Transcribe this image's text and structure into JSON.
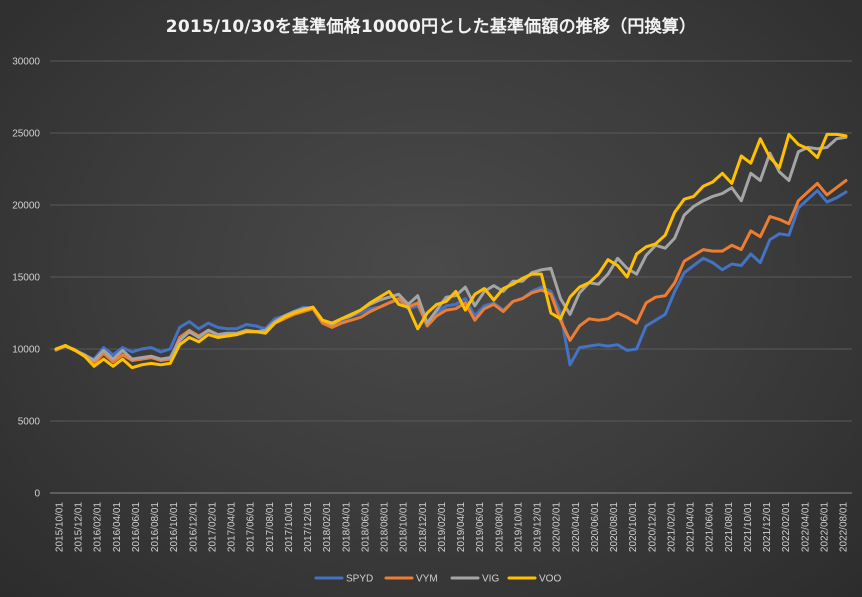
{
  "chart_data": {
    "type": "line",
    "title": "2015/10/30を基準価格10000円とした基準価額の推移（円換算）",
    "xlabel": "",
    "ylabel": "",
    "ylim": [
      0,
      30000
    ],
    "yticks": [
      0,
      5000,
      10000,
      15000,
      20000,
      25000,
      30000
    ],
    "ytick_labels": [
      "0",
      "5000",
      "10000",
      "15000",
      "20000",
      "25000",
      "30000"
    ],
    "x_tick_labels": [
      "2015/10/01",
      "2015/12/01",
      "2016/02/01",
      "2016/04/01",
      "2016/06/01",
      "2016/08/01",
      "2016/10/01",
      "2016/12/01",
      "2017/02/01",
      "2017/04/01",
      "2017/06/01",
      "2017/08/01",
      "2017/10/01",
      "2017/12/01",
      "2018/02/01",
      "2018/04/01",
      "2018/06/01",
      "2018/08/01",
      "2018/10/01",
      "2018/12/01",
      "2019/02/01",
      "2019/04/01",
      "2019/06/01",
      "2019/08/01",
      "2019/10/01",
      "2019/12/01",
      "2020/02/01",
      "2020/04/01",
      "2020/06/01",
      "2020/08/01",
      "2020/10/01",
      "2020/12/01",
      "2021/02/01",
      "2021/04/01",
      "2021/06/01",
      "2021/08/01",
      "2021/10/01",
      "2021/12/01",
      "2022/02/01",
      "2022/04/01",
      "2022/06/01",
      "2022/08/01"
    ],
    "grid": true,
    "legend_position": "bottom",
    "series": [
      {
        "name": "SPYD",
        "color": "#4472c4",
        "values": [
          9900,
          10200,
          9900,
          9500,
          9300,
          10100,
          9600,
          10100,
          9800,
          10000,
          10100,
          9800,
          10000,
          11500,
          11900,
          11400,
          11800,
          11500,
          11400,
          11400,
          11700,
          11600,
          11400,
          12100,
          12300,
          12600,
          12900,
          12800,
          11900,
          11700,
          11900,
          12300,
          12500,
          12800,
          12900,
          13200,
          13400,
          12800,
          13000,
          11800,
          12500,
          13000,
          13100,
          13500,
          12300,
          13000,
          13200,
          12700,
          13300,
          13500,
          14000,
          14300,
          14000,
          12500,
          8900,
          10100,
          10200,
          10300,
          10200,
          10300,
          9900,
          10000,
          11600,
          12000,
          12400,
          14000,
          15300,
          15800,
          16300,
          16000,
          15500,
          15900,
          15800,
          16600,
          16000,
          17600,
          18000,
          17900,
          19800,
          20400,
          21000,
          20200,
          20500,
          20900
        ]
      },
      {
        "name": "VYM",
        "color": "#ed7d31",
        "values": [
          9950,
          10200,
          9950,
          9500,
          9000,
          9700,
          9100,
          9600,
          9200,
          9300,
          9400,
          9200,
          9300,
          10800,
          11300,
          10900,
          11300,
          11000,
          11000,
          11000,
          11300,
          11200,
          11200,
          11800,
          12100,
          12400,
          12600,
          12800,
          11800,
          11500,
          11800,
          12000,
          12200,
          12600,
          12900,
          13200,
          13500,
          12900,
          13200,
          11600,
          12300,
          12700,
          12800,
          13200,
          12000,
          12800,
          13100,
          12600,
          13300,
          13500,
          13900,
          14100,
          13800,
          12000,
          10600,
          11600,
          12100,
          12000,
          12100,
          12500,
          12200,
          11800,
          13200,
          13600,
          13700,
          14600,
          16100,
          16500,
          16900,
          16800,
          16800,
          17200,
          16900,
          18200,
          17800,
          19200,
          19000,
          18700,
          20300,
          20900,
          21500,
          20700,
          21200,
          21700
        ]
      },
      {
        "name": "VIG",
        "color": "#a5a5a5",
        "values": [
          10000,
          10200,
          9900,
          9600,
          9200,
          9900,
          9300,
          9900,
          9300,
          9400,
          9500,
          9300,
          9400,
          10600,
          11200,
          10800,
          11300,
          11000,
          11100,
          11100,
          11300,
          11200,
          11300,
          11900,
          12300,
          12600,
          12800,
          12900,
          12000,
          11700,
          12100,
          12300,
          12700,
          13100,
          13400,
          13600,
          13800,
          13100,
          13700,
          11800,
          12700,
          13600,
          13700,
          14300,
          13000,
          14000,
          14400,
          14000,
          14700,
          14700,
          15300,
          15500,
          15600,
          13500,
          12400,
          13900,
          14600,
          14500,
          15200,
          16300,
          15600,
          15200,
          16500,
          17200,
          17000,
          17700,
          19300,
          19900,
          20300,
          20600,
          20800,
          21200,
          20300,
          22200,
          21700,
          23600,
          22300,
          21700,
          23700,
          24000,
          23900,
          24000,
          24600,
          24700
        ]
      },
      {
        "name": "VOO",
        "color": "#ffc000",
        "values": [
          10000,
          10250,
          9900,
          9500,
          8800,
          9300,
          8800,
          9300,
          8700,
          8900,
          9000,
          8900,
          9000,
          10300,
          10800,
          10500,
          11000,
          10800,
          10900,
          11000,
          11200,
          11200,
          11100,
          11800,
          12200,
          12500,
          12700,
          12900,
          12000,
          11800,
          12100,
          12400,
          12700,
          13200,
          13600,
          14000,
          13100,
          12900,
          11400,
          12500,
          13100,
          13300,
          14000,
          12700,
          13800,
          14200,
          13400,
          14200,
          14500,
          14900,
          15200,
          15200,
          12500,
          12100,
          13600,
          14300,
          14600,
          15200,
          16200,
          15800,
          15000,
          16600,
          17100,
          17300,
          17900,
          19500,
          20400,
          20600,
          21300,
          21600,
          22200,
          21500,
          23400,
          22900,
          24600,
          23300,
          22600,
          24900,
          24200,
          23900,
          23300,
          24900,
          24900,
          24800
        ]
      }
    ]
  }
}
